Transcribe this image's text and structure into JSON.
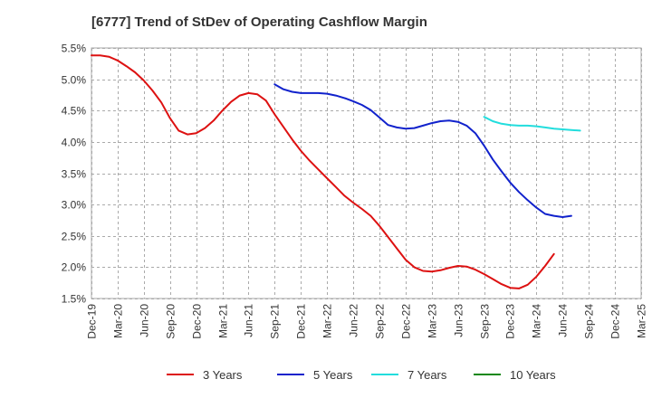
{
  "chart_data": {
    "type": "line",
    "title": "[6777]  Trend of StDev of Operating Cashflow Margin",
    "xlabel": "",
    "ylabel": "",
    "ylim": [
      1.5,
      5.5
    ],
    "yticks": [
      "1.5%",
      "2.0%",
      "2.5%",
      "3.0%",
      "3.5%",
      "4.0%",
      "4.5%",
      "5.0%",
      "5.5%"
    ],
    "ytick_values": [
      1.5,
      2.0,
      2.5,
      3.0,
      3.5,
      4.0,
      4.5,
      5.0,
      5.5
    ],
    "xticks": [
      "Dec-19",
      "Mar-20",
      "Jun-20",
      "Sep-20",
      "Dec-20",
      "Mar-21",
      "Jun-21",
      "Sep-21",
      "Dec-21",
      "Mar-22",
      "Jun-22",
      "Sep-22",
      "Dec-22",
      "Mar-23",
      "Jun-23",
      "Sep-23",
      "Dec-23",
      "Mar-24",
      "Jun-24",
      "Sep-24",
      "Dec-24",
      "Mar-25"
    ],
    "grid": true,
    "legend_position": "bottom",
    "series": [
      {
        "name": "3 Years",
        "color": "#dd1111",
        "values": [
          [
            0,
            5.38
          ],
          [
            1,
            5.38
          ],
          [
            2,
            5.36
          ],
          [
            3,
            5.3
          ],
          [
            4,
            5.21
          ],
          [
            5,
            5.11
          ],
          [
            6,
            4.98
          ],
          [
            7,
            4.82
          ],
          [
            8,
            4.63
          ],
          [
            9,
            4.38
          ],
          [
            10,
            4.18
          ],
          [
            11,
            4.12
          ],
          [
            12,
            4.14
          ],
          [
            13,
            4.22
          ],
          [
            14,
            4.34
          ],
          [
            15,
            4.5
          ],
          [
            16,
            4.64
          ],
          [
            17,
            4.74
          ],
          [
            18,
            4.78
          ],
          [
            19,
            4.76
          ],
          [
            20,
            4.66
          ],
          [
            21,
            4.44
          ],
          [
            22,
            4.24
          ],
          [
            23,
            4.04
          ],
          [
            24,
            3.86
          ],
          [
            25,
            3.7
          ],
          [
            26,
            3.56
          ],
          [
            27,
            3.42
          ],
          [
            28,
            3.28
          ],
          [
            29,
            3.14
          ],
          [
            30,
            3.03
          ],
          [
            31,
            2.93
          ],
          [
            32,
            2.82
          ],
          [
            33,
            2.66
          ],
          [
            34,
            2.48
          ],
          [
            35,
            2.3
          ],
          [
            36,
            2.12
          ],
          [
            37,
            2.0
          ],
          [
            38,
            1.94
          ],
          [
            39,
            1.93
          ],
          [
            40,
            1.95
          ],
          [
            41,
            1.99
          ],
          [
            42,
            2.02
          ],
          [
            43,
            2.01
          ],
          [
            44,
            1.96
          ],
          [
            45,
            1.89
          ],
          [
            46,
            1.81
          ],
          [
            47,
            1.73
          ],
          [
            48,
            1.67
          ],
          [
            49,
            1.66
          ],
          [
            50,
            1.72
          ],
          [
            51,
            1.85
          ],
          [
            52,
            2.02
          ],
          [
            53,
            2.21
          ]
        ]
      },
      {
        "name": "5 Years",
        "color": "#1122cc",
        "values": [
          [
            21,
            4.92
          ],
          [
            22,
            4.84
          ],
          [
            23,
            4.8
          ],
          [
            24,
            4.78
          ],
          [
            25,
            4.78
          ],
          [
            26,
            4.78
          ],
          [
            27,
            4.77
          ],
          [
            28,
            4.74
          ],
          [
            29,
            4.7
          ],
          [
            30,
            4.65
          ],
          [
            31,
            4.59
          ],
          [
            32,
            4.51
          ],
          [
            33,
            4.39
          ],
          [
            34,
            4.27
          ],
          [
            35,
            4.23
          ],
          [
            36,
            4.21
          ],
          [
            37,
            4.22
          ],
          [
            38,
            4.26
          ],
          [
            39,
            4.3
          ],
          [
            40,
            4.33
          ],
          [
            41,
            4.34
          ],
          [
            42,
            4.32
          ],
          [
            43,
            4.26
          ],
          [
            44,
            4.14
          ],
          [
            45,
            3.94
          ],
          [
            46,
            3.72
          ],
          [
            47,
            3.53
          ],
          [
            48,
            3.35
          ],
          [
            49,
            3.2
          ],
          [
            50,
            3.07
          ],
          [
            51,
            2.95
          ],
          [
            52,
            2.85
          ],
          [
            53,
            2.82
          ],
          [
            54,
            2.8
          ],
          [
            55,
            2.82
          ]
        ]
      },
      {
        "name": "7 Years",
        "color": "#22dddd",
        "values": [
          [
            45,
            4.4
          ],
          [
            46,
            4.33
          ],
          [
            47,
            4.29
          ],
          [
            48,
            4.27
          ],
          [
            49,
            4.26
          ],
          [
            50,
            4.26
          ],
          [
            51,
            4.25
          ],
          [
            52,
            4.23
          ],
          [
            53,
            4.21
          ],
          [
            54,
            4.2
          ],
          [
            55,
            4.19
          ],
          [
            56,
            4.18
          ]
        ]
      },
      {
        "name": "10 Years",
        "color": "#118811",
        "values": []
      }
    ]
  }
}
